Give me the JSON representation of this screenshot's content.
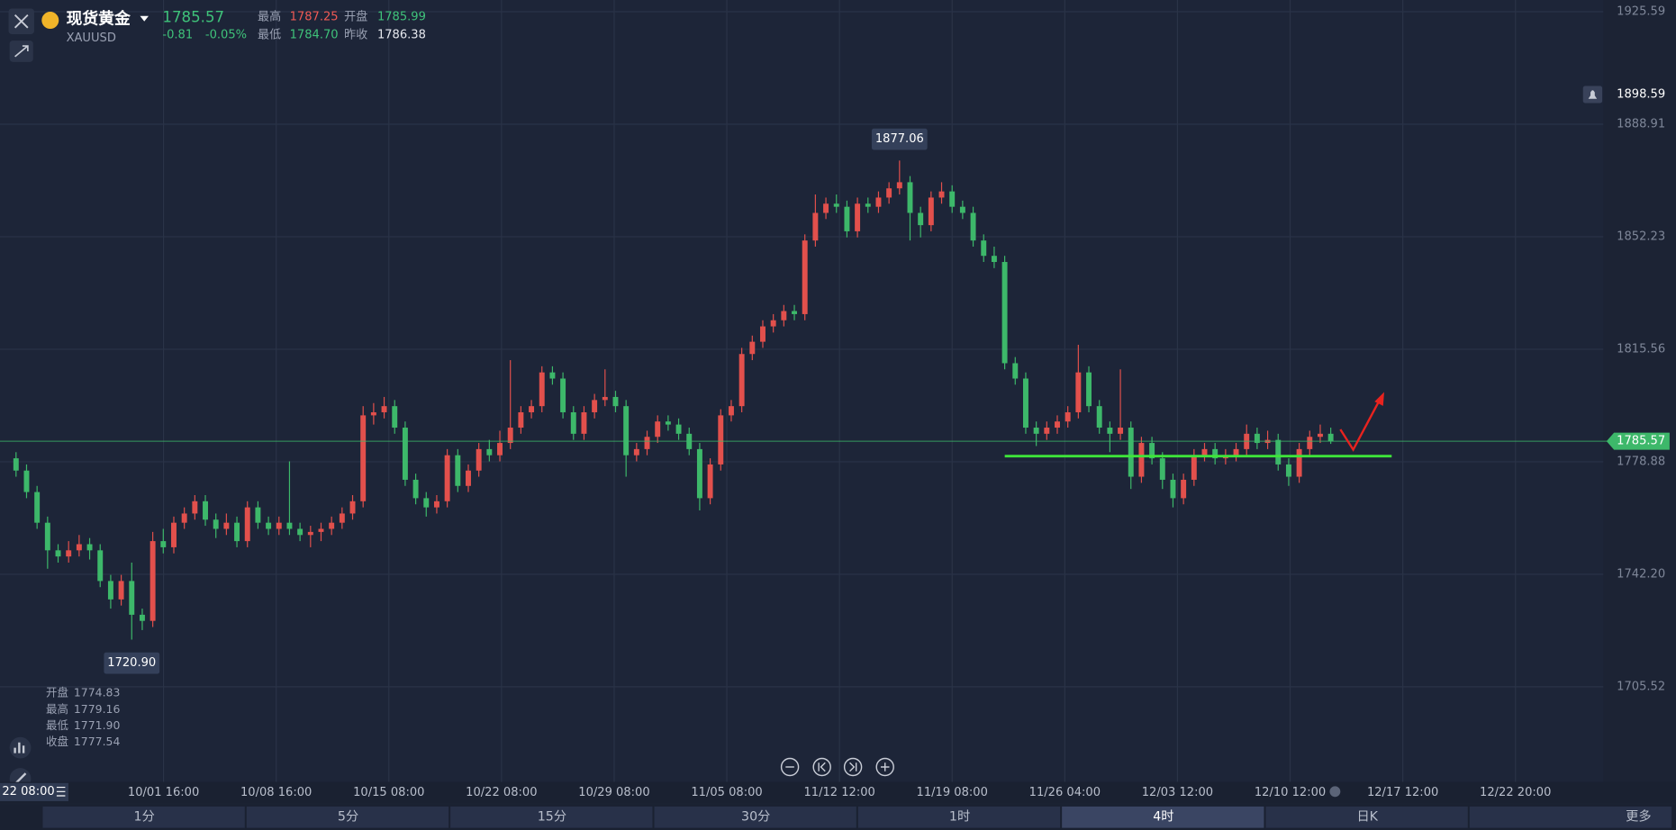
{
  "header": {
    "name": "现货黄金",
    "symbol": "XAUUSD",
    "price": "1785.57",
    "change": "-0.81",
    "change_pct": "-0.05%",
    "high_label": "最高",
    "high": "1787.25",
    "open_label": "开盘",
    "open": "1785.99",
    "low_label": "最低",
    "low": "1784.70",
    "prev_label": "昨收",
    "prev": "1786.38"
  },
  "ohlc_info": [
    {
      "label": "开盘",
      "value": "1774.83"
    },
    {
      "label": "最高",
      "value": "1779.16"
    },
    {
      "label": "最低",
      "value": "1771.90"
    },
    {
      "label": "收盘",
      "value": "1777.54"
    }
  ],
  "cursor_time": "22 08:00",
  "tabs": [
    "1分",
    "5分",
    "15分",
    "30分",
    "1时",
    "4时",
    "日K",
    "更多"
  ],
  "chart_data": {
    "type": "candlestick",
    "up_color": "#e2504c",
    "down_color": "#3db86a",
    "grid": true,
    "ylim": [
      1674.5,
      1929.4
    ],
    "yticks": [
      {
        "value": 1705.52,
        "label": "1705.52"
      },
      {
        "value": 1742.2,
        "label": "1742.20"
      },
      1778.88,
      1815.56,
      1852.23,
      1888.91,
      1925.59
    ],
    "x_labels": [
      "10/01 16:00",
      "10/08 16:00",
      "10/15 08:00",
      "10/22 08:00",
      "10/29 08:00",
      "11/05 08:00",
      "11/12 12:00",
      "11/19 08:00",
      "11/26 04:00",
      "12/03 12:00",
      "12/10 12:00",
      "12/17 12:00",
      "12/22 20:00"
    ],
    "last_price": 1785.57,
    "alert_price": 1898.59,
    "annotations": [
      {
        "value": 1877.06
      },
      {
        "value": 1720.9,
        "label": "1720.90"
      }
    ],
    "open": [
      1780,
      1776,
      1769,
      1759,
      1750,
      1748,
      1750,
      1752,
      1750,
      1740,
      1734,
      1740,
      1729,
      1727,
      1753,
      1751,
      1759,
      1762,
      1766,
      1760,
      1757,
      1759,
      1753,
      1764,
      1759,
      1757,
      1759,
      1757,
      1755,
      1756,
      1757,
      1759,
      1762,
      1766,
      1794,
      1795,
      1797,
      1790,
      1773,
      1767,
      1764,
      1766,
      1781,
      1771,
      1776,
      1783,
      1781,
      1785,
      1790,
      1795,
      1797,
      1808,
      1806,
      1795,
      1788,
      1795,
      1799,
      1800,
      1797,
      1781,
      1783,
      1787,
      1792,
      1791,
      1788,
      1783,
      1767,
      1778,
      1794,
      1797,
      1814,
      1818,
      1823,
      1825,
      1828,
      1827,
      1851,
      1860,
      1863,
      1862,
      1854,
      1863,
      1862,
      1865,
      1868,
      1870,
      1860,
      1856,
      1865,
      1867,
      1862,
      1860,
      1851,
      1846,
      1844,
      1811,
      1806,
      1790,
      1788,
      1790,
      1792,
      1795,
      1808,
      1797,
      1790,
      1788,
      1790,
      1774,
      1785,
      1780,
      1773,
      1767,
      1773,
      1781,
      1783,
      1780,
      1781,
      1783,
      1788,
      1785,
      1786,
      1778,
      1774,
      1783,
      1787,
      1788
    ],
    "high": [
      1782,
      1778,
      1771,
      1761,
      1752,
      1753,
      1755,
      1754,
      1752,
      1742,
      1742,
      1746,
      1731,
      1756,
      1757,
      1761,
      1764,
      1768,
      1768,
      1762,
      1762,
      1761,
      1766,
      1766,
      1761,
      1761,
      1779,
      1759,
      1758,
      1759,
      1761,
      1764,
      1768,
      1797,
      1798,
      1800,
      1799,
      1792,
      1775,
      1769,
      1768,
      1783,
      1783,
      1778,
      1785,
      1786,
      1789,
      1812,
      1797,
      1799,
      1810,
      1810,
      1808,
      1797,
      1797,
      1801,
      1809,
      1802,
      1799,
      1785,
      1789,
      1794,
      1794,
      1793,
      1790,
      1785,
      1780,
      1796,
      1799,
      1816,
      1820,
      1825,
      1827,
      1830,
      1830,
      1853,
      1866,
      1865,
      1866,
      1864,
      1865,
      1865,
      1867,
      1870,
      1877.06,
      1872,
      1862,
      1867,
      1870,
      1869,
      1864,
      1862,
      1853,
      1849,
      1846,
      1813,
      1808,
      1792,
      1792,
      1794,
      1797,
      1817,
      1810,
      1799,
      1792,
      1809,
      1792,
      1787,
      1787,
      1782,
      1775,
      1775,
      1783,
      1785,
      1785,
      1783,
      1785,
      1791,
      1790,
      1789,
      1788,
      1780,
      1785,
      1789,
      1791,
      1790
    ],
    "low": [
      1774,
      1767,
      1757,
      1744,
      1746,
      1746,
      1748,
      1747,
      1738,
      1731,
      1732,
      1720.9,
      1724,
      1725,
      1749,
      1749,
      1757,
      1760,
      1758,
      1754,
      1755,
      1751,
      1751,
      1757,
      1755,
      1755,
      1755,
      1753,
      1751,
      1753,
      1755,
      1757,
      1760,
      1764,
      1791,
      1793,
      1788,
      1771,
      1765,
      1761,
      1762,
      1764,
      1769,
      1769,
      1774,
      1779,
      1779,
      1783,
      1788,
      1793,
      1795,
      1804,
      1793,
      1786,
      1786,
      1793,
      1797,
      1795,
      1774,
      1779,
      1781,
      1785,
      1789,
      1786,
      1781,
      1763,
      1765,
      1776,
      1792,
      1795,
      1812,
      1816,
      1821,
      1823,
      1825,
      1825,
      1849,
      1858,
      1860,
      1852,
      1852,
      1860,
      1860,
      1863,
      1866,
      1851,
      1852,
      1854,
      1863,
      1860,
      1858,
      1849,
      1844,
      1842,
      1809,
      1804,
      1788,
      1784,
      1786,
      1788,
      1790,
      1793,
      1795,
      1788,
      1782,
      1786,
      1770,
      1772,
      1778,
      1770,
      1764,
      1765,
      1771,
      1779,
      1778,
      1778,
      1779,
      1781,
      1783,
      1783,
      1776,
      1771,
      1772,
      1781,
      1785,
      1784.7
    ],
    "close": [
      1776,
      1769,
      1759,
      1750,
      1748,
      1750,
      1752,
      1750,
      1740,
      1734,
      1740,
      1729,
      1727,
      1753,
      1751,
      1759,
      1762,
      1766,
      1760,
      1757,
      1759,
      1753,
      1764,
      1759,
      1757,
      1759,
      1757,
      1755,
      1756,
      1757,
      1759,
      1762,
      1766,
      1794,
      1795,
      1797,
      1790,
      1773,
      1767,
      1764,
      1766,
      1781,
      1771,
      1776,
      1783,
      1781,
      1785,
      1790,
      1795,
      1797,
      1808,
      1806,
      1795,
      1788,
      1795,
      1799,
      1800,
      1797,
      1781,
      1783,
      1787,
      1792,
      1791,
      1788,
      1783,
      1767,
      1778,
      1794,
      1797,
      1814,
      1818,
      1823,
      1825,
      1828,
      1827,
      1851,
      1860,
      1863,
      1862,
      1854,
      1863,
      1862,
      1865,
      1868,
      1870,
      1860,
      1856,
      1865,
      1867,
      1862,
      1860,
      1851,
      1846,
      1844,
      1811,
      1806,
      1790,
      1788,
      1790,
      1792,
      1795,
      1808,
      1797,
      1790,
      1788,
      1790,
      1774,
      1785,
      1780,
      1773,
      1767,
      1773,
      1781,
      1783,
      1780,
      1781,
      1783,
      1788,
      1785,
      1786,
      1778,
      1774,
      1783,
      1787,
      1788,
      1785.57
    ]
  }
}
